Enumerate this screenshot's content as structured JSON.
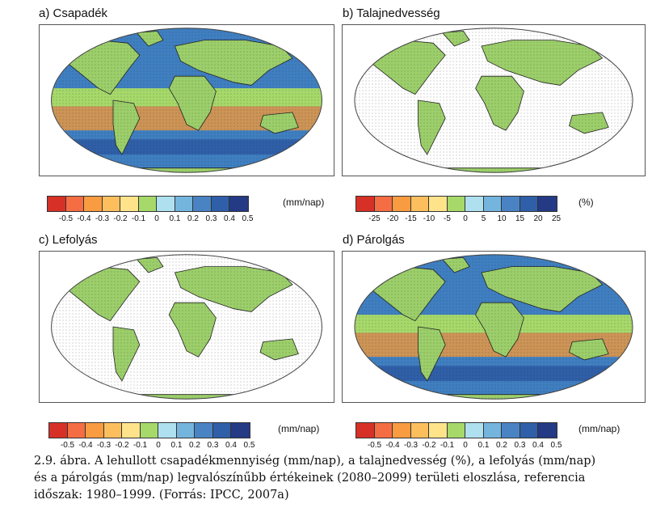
{
  "panels": [
    {
      "title": "a) Csapadék",
      "style": "full",
      "legend": {
        "unit": "(mm/nap)",
        "colors": [
          "#d73027",
          "#f46d43",
          "#f99b40",
          "#fdbf5e",
          "#fee38b",
          "#a6d96a",
          "#aee0f0",
          "#74b5de",
          "#4a83c4",
          "#2f5fa8",
          "#253a85"
        ],
        "ticks": [
          "-0.5",
          "-0.4",
          "-0.3",
          "-0.2",
          "-0.1",
          "0",
          "0.1",
          "0.2",
          "0.3",
          "0.4",
          "0.5"
        ]
      }
    },
    {
      "title": "b) Talajnedvesség",
      "style": "land",
      "legend": {
        "unit": "(%)",
        "colors": [
          "#d73027",
          "#f46d43",
          "#f99b40",
          "#fdbf5e",
          "#fee38b",
          "#a6d96a",
          "#aee0f0",
          "#74b5de",
          "#4a83c4",
          "#2f5fa8",
          "#253a85"
        ],
        "ticks": [
          "-25",
          "-20",
          "-15",
          "-10",
          "-5",
          "0",
          "5",
          "10",
          "15",
          "20",
          "25"
        ]
      }
    },
    {
      "title": "c) Lefolyás",
      "style": "land",
      "legend": {
        "unit": "(mm/nap)",
        "colors": [
          "#d73027",
          "#f46d43",
          "#f99b40",
          "#fdbf5e",
          "#fee38b",
          "#a6d96a",
          "#aee0f0",
          "#74b5de",
          "#4a83c4",
          "#2f5fa8",
          "#253a85"
        ],
        "ticks": [
          "-0.5",
          "-0.4",
          "-0.3",
          "-0.2",
          "-0.1",
          "0",
          "0.1",
          "0.2",
          "0.3",
          "0.4",
          "0.5"
        ]
      }
    },
    {
      "title": "d) Párolgás",
      "style": "full",
      "legend": {
        "unit": "(mm/nap)",
        "colors": [
          "#d73027",
          "#f46d43",
          "#f99b40",
          "#fdbf5e",
          "#fee38b",
          "#a6d96a",
          "#aee0f0",
          "#74b5de",
          "#4a83c4",
          "#2f5fa8",
          "#253a85"
        ],
        "ticks": [
          "-0.5",
          "-0.4",
          "-0.3",
          "-0.2",
          "-0.1",
          "0",
          "0.1",
          "0.2",
          "0.3",
          "0.4",
          "0.5"
        ]
      }
    }
  ],
  "caption": {
    "line1": "2.9. ábra. A lehullott csapadékmennyiség (mm/nap), a talajnedvesség (%), a lefolyás (mm/nap)",
    "line2": "és a párolgás (mm/nap) legvalószínűbb értékeinek (2080–2099) területi eloszlása, referencia",
    "line3": "időszak: 1980–1999. (Forrás: IPCC, 2007a)"
  },
  "colors": {
    "ocean_blue": "#3f7fc1",
    "land_green": "#9ccf6a",
    "dry_orange": "#f19a3b",
    "frame": "#555555"
  }
}
